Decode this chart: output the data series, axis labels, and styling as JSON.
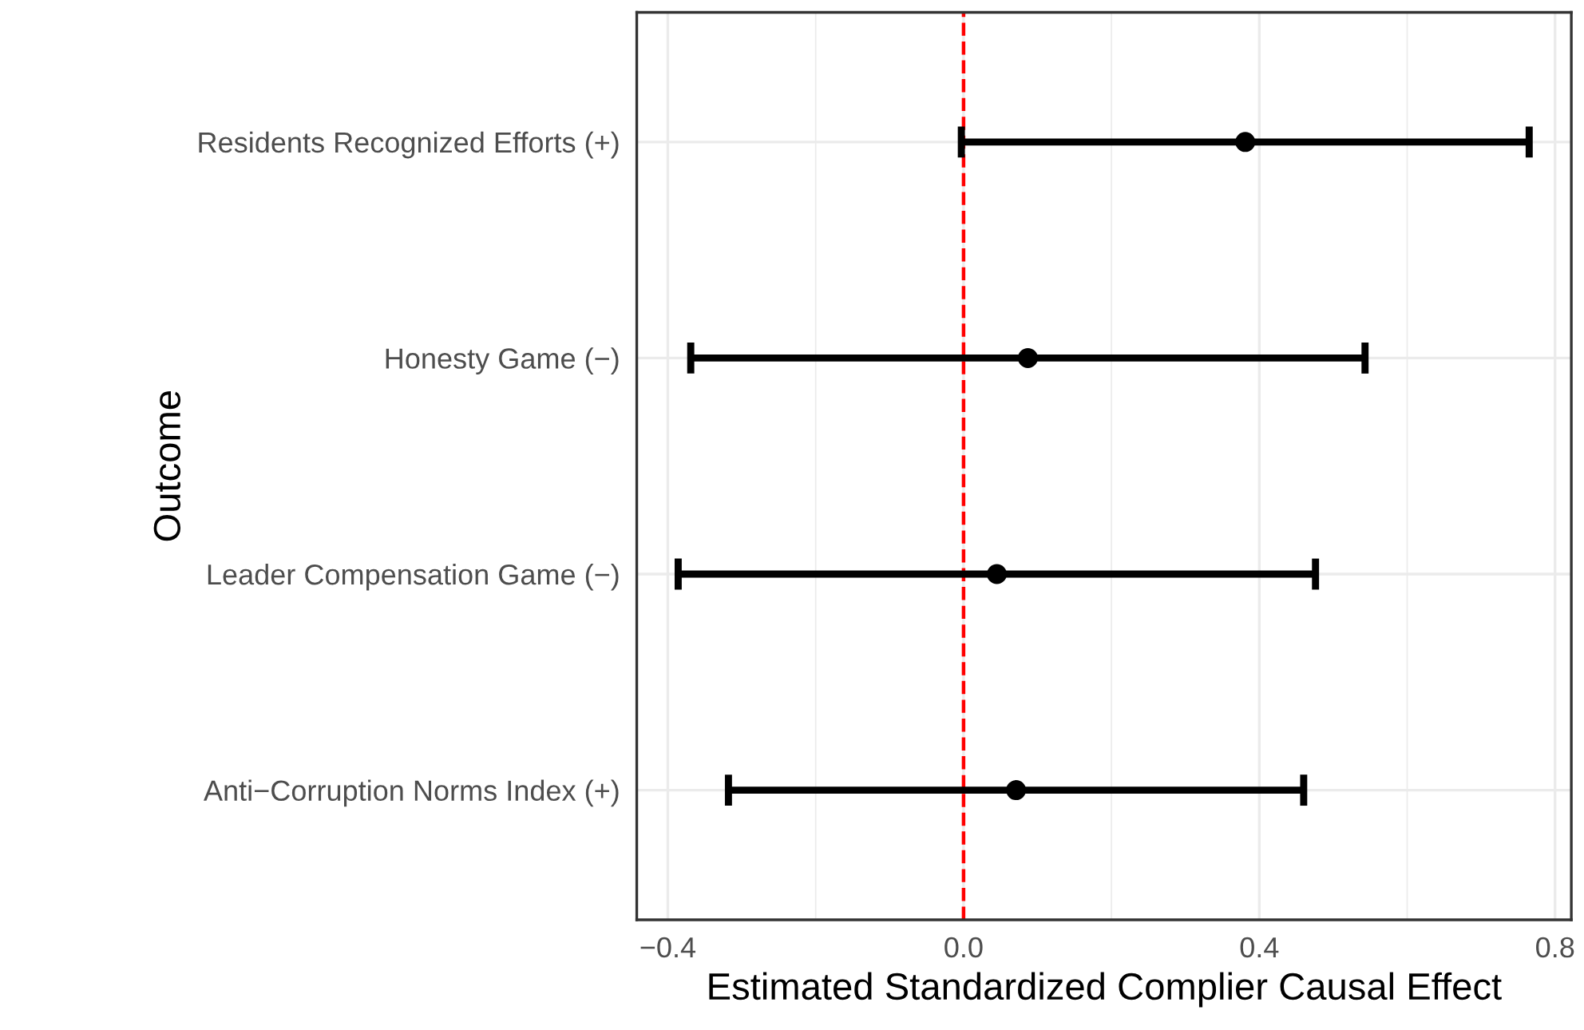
{
  "chart_data": {
    "type": "scatter",
    "orientation": "horizontal",
    "xlabel": "Estimated Standardized Complier Causal Effect",
    "ylabel": "Outcome",
    "categories": [
      "Residents Recognized Efforts (+)",
      "Honesty Game (−)",
      "Leader Compensation Game (−)",
      "Anti−Corruption Norms Index (+)"
    ],
    "values": [
      0.381,
      0.087,
      0.045,
      0.071
    ],
    "errors": [
      0.384,
      0.456,
      0.431,
      0.389
    ],
    "color": "#000000",
    "marker": "circle",
    "xlim": [
      -0.442,
      0.822
    ],
    "xticks": [
      {
        "value": -0.4,
        "label": "−0.4"
      },
      {
        "value": 0.0,
        "label": "0.0"
      },
      {
        "value": 0.4,
        "label": "0.4"
      },
      {
        "value": 0.8,
        "label": "0.8"
      }
    ],
    "ref_lines": [
      {
        "axis": "x",
        "value": 0,
        "color": "#ff0000",
        "line_style": "dashed"
      }
    ],
    "grid": true
  }
}
